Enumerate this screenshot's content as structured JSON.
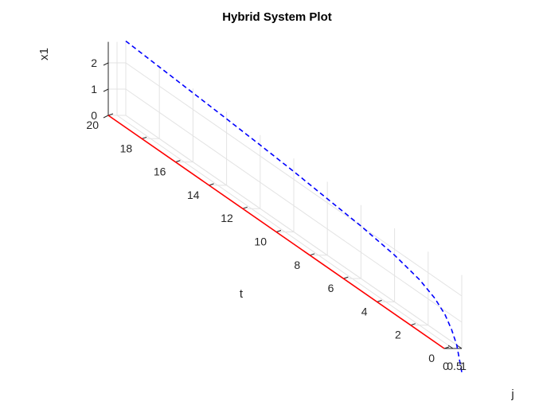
{
  "chart_data": {
    "type": "line",
    "projection": "3d",
    "title": "Hybrid System Plot",
    "axes": {
      "t": {
        "label": "t",
        "range": [
          0,
          20
        ],
        "ticks": [
          0,
          2,
          4,
          6,
          8,
          10,
          12,
          14,
          16,
          18,
          20
        ]
      },
      "j": {
        "label": "j",
        "range": [
          0,
          1
        ],
        "ticks": [
          0,
          0.5,
          1
        ],
        "tick_labels": [
          "0",
          "0.5",
          "1"
        ]
      },
      "x1": {
        "label": "x1",
        "range": [
          0,
          2.8
        ],
        "ticks": [
          0,
          1,
          2
        ]
      }
    },
    "grid": true,
    "series": [
      {
        "style": "solid",
        "color": "#ff0000",
        "points": [
          {
            "t": 0,
            "j": 0,
            "x1": 0
          },
          {
            "t": 20,
            "j": 0,
            "x1": 0
          }
        ]
      },
      {
        "style": "dashed",
        "color": "#0000ff",
        "points": [
          {
            "t": 0,
            "j": 1,
            "x1": -0.9
          },
          {
            "t": 0.3,
            "j": 1,
            "x1": 0.0
          },
          {
            "t": 0.6,
            "j": 1,
            "x1": 0.45
          },
          {
            "t": 1.0,
            "j": 1,
            "x1": 0.85
          },
          {
            "t": 1.6,
            "j": 1,
            "x1": 1.2
          },
          {
            "t": 2.5,
            "j": 1,
            "x1": 1.5
          },
          {
            "t": 4.0,
            "j": 1,
            "x1": 1.78
          },
          {
            "t": 6.0,
            "j": 1,
            "x1": 2.0
          },
          {
            "t": 8.0,
            "j": 1,
            "x1": 2.15
          },
          {
            "t": 10.0,
            "j": 1,
            "x1": 2.3
          },
          {
            "t": 12.0,
            "j": 1,
            "x1": 2.42
          },
          {
            "t": 14.0,
            "j": 1,
            "x1": 2.53
          },
          {
            "t": 16.0,
            "j": 1,
            "x1": 2.63
          },
          {
            "t": 18.0,
            "j": 1,
            "x1": 2.73
          },
          {
            "t": 20.0,
            "j": 1,
            "x1": 2.83
          }
        ]
      }
    ]
  }
}
